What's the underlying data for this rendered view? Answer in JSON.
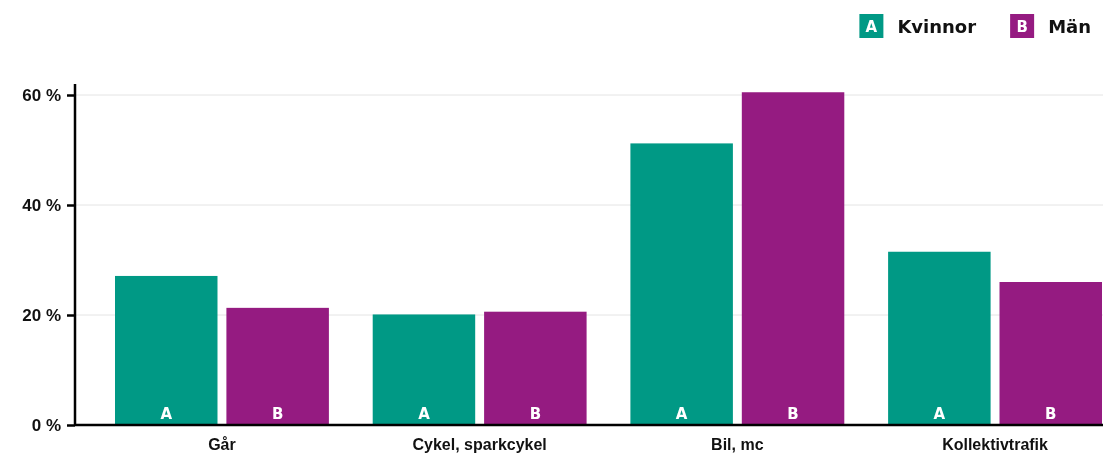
{
  "chart_data": {
    "type": "bar",
    "categories": [
      "Går",
      "Cykel, sparkcykel",
      "Bil, mc",
      "Kollektivtrafik"
    ],
    "series": [
      {
        "name": "Kvinnor",
        "color": "#009985",
        "values": [
          27.1,
          20.1,
          51.2,
          31.5
        ],
        "value_labels": [
          "A",
          "A",
          "A",
          "A"
        ]
      },
      {
        "name": "Män",
        "color": "#951b81",
        "values": [
          21.3,
          20.6,
          60.5,
          26.0
        ],
        "value_labels": [
          "B",
          "B",
          "B",
          "B"
        ]
      }
    ],
    "ylim": [
      0,
      62
    ],
    "yticks": [
      {
        "value": 0,
        "label": "0 %"
      },
      {
        "value": 20,
        "label": "20 %"
      },
      {
        "value": 40,
        "label": "40 %"
      },
      {
        "value": 60,
        "label": "60 %"
      }
    ],
    "grid": "y",
    "legend": "top right"
  }
}
